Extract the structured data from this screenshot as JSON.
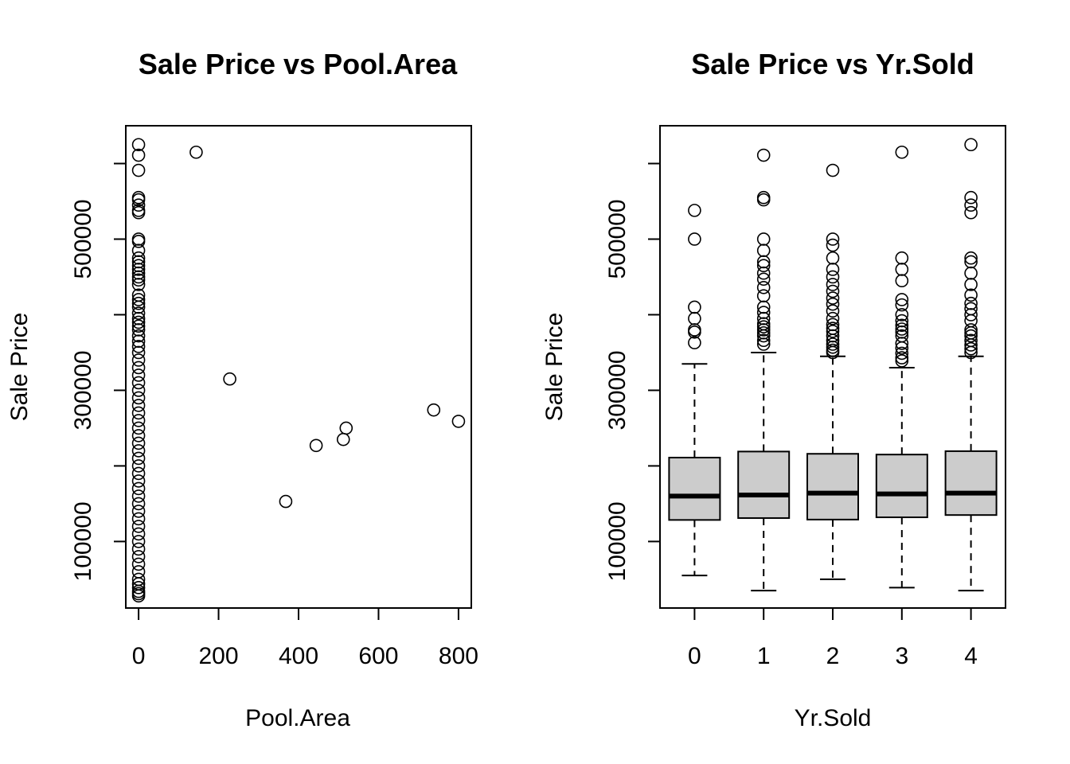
{
  "chart_data": [
    {
      "type": "scatter",
      "title": "Sale Price vs Pool.Area",
      "xlabel": "Pool.Area",
      "ylabel": "Sale Price",
      "xlim": [
        -32,
        832
      ],
      "ylim": [
        12000,
        650000
      ],
      "xticks": [
        0,
        200,
        400,
        600,
        800
      ],
      "xtick_labels": [
        "0",
        "200",
        "400",
        "600",
        "800"
      ],
      "yticks": [
        100000,
        300000,
        500000
      ],
      "ytick_labels": [
        "100000",
        "300000",
        "500000"
      ],
      "yticks_minor": [
        200000,
        400000,
        600000
      ],
      "points": [
        [
          0,
          625000
        ],
        [
          0,
          611000
        ],
        [
          0,
          591000
        ],
        [
          0,
          555000
        ],
        [
          0,
          552000
        ],
        [
          0,
          545000
        ],
        [
          0,
          538000
        ],
        [
          0,
          535000
        ],
        [
          0,
          500000
        ],
        [
          0,
          497000
        ],
        [
          0,
          485000
        ],
        [
          0,
          475000
        ],
        [
          0,
          470000
        ],
        [
          0,
          465000
        ],
        [
          0,
          460000
        ],
        [
          0,
          455000
        ],
        [
          0,
          450000
        ],
        [
          0,
          446000
        ],
        [
          0,
          440000
        ],
        [
          0,
          426000
        ],
        [
          0,
          420000
        ],
        [
          0,
          415000
        ],
        [
          0,
          410000
        ],
        [
          0,
          402000
        ],
        [
          0,
          395000
        ],
        [
          0,
          390000
        ],
        [
          0,
          385000
        ],
        [
          0,
          380000
        ],
        [
          0,
          372000
        ],
        [
          0,
          365000
        ],
        [
          0,
          358000
        ],
        [
          0,
          350000
        ],
        [
          0,
          340000
        ],
        [
          0,
          330000
        ],
        [
          0,
          320000
        ],
        [
          0,
          310000
        ],
        [
          0,
          300000
        ],
        [
          0,
          290000
        ],
        [
          0,
          280000
        ],
        [
          0,
          270000
        ],
        [
          0,
          260000
        ],
        [
          0,
          250000
        ],
        [
          0,
          240000
        ],
        [
          0,
          230000
        ],
        [
          0,
          220000
        ],
        [
          0,
          210000
        ],
        [
          0,
          200000
        ],
        [
          0,
          190000
        ],
        [
          0,
          180000
        ],
        [
          0,
          170000
        ],
        [
          0,
          160000
        ],
        [
          0,
          150000
        ],
        [
          0,
          140000
        ],
        [
          0,
          130000
        ],
        [
          0,
          120000
        ],
        [
          0,
          110000
        ],
        [
          0,
          100000
        ],
        [
          0,
          90000
        ],
        [
          0,
          80000
        ],
        [
          0,
          70000
        ],
        [
          0,
          60000
        ],
        [
          0,
          50000
        ],
        [
          0,
          44000
        ],
        [
          0,
          39000
        ],
        [
          0,
          34000
        ],
        [
          0,
          31000
        ],
        [
          0,
          28000
        ],
        [
          144,
          615000
        ],
        [
          228,
          315000
        ],
        [
          368,
          153000
        ],
        [
          444,
          227000
        ],
        [
          512,
          235000
        ],
        [
          519,
          250000
        ],
        [
          738,
          274000
        ],
        [
          800,
          259000
        ]
      ]
    },
    {
      "type": "boxplot",
      "title": "Sale Price vs Yr.Sold",
      "xlabel": "Yr.Sold",
      "ylabel": "Sale Price",
      "xlim": [
        -0.5,
        4.5
      ],
      "ylim": [
        12000,
        650000
      ],
      "categories": [
        "0",
        "1",
        "2",
        "3",
        "4"
      ],
      "yticks": [
        100000,
        300000,
        500000
      ],
      "ytick_labels": [
        "100000",
        "300000",
        "500000"
      ],
      "yticks_minor": [
        200000,
        400000,
        600000
      ],
      "boxes": [
        {
          "category": "0",
          "lower_whisker": 55000,
          "q1": 128500,
          "median": 160000,
          "q3": 211000,
          "upper_whisker": 335000,
          "outliers": [
            538000,
            500000,
            410000,
            395000,
            380000,
            377000,
            363000
          ]
        },
        {
          "category": "1",
          "lower_whisker": 35000,
          "q1": 131000,
          "median": 161500,
          "q3": 219000,
          "upper_whisker": 350000,
          "outliers": [
            611000,
            555000,
            552000,
            500000,
            485000,
            470000,
            465000,
            455000,
            447000,
            436000,
            425000,
            410000,
            403000,
            395000,
            388000,
            384000,
            380000,
            376000,
            372000,
            366000,
            361000
          ]
        },
        {
          "category": "2",
          "lower_whisker": 50000,
          "q1": 129000,
          "median": 164000,
          "q3": 216000,
          "upper_whisker": 345000,
          "outliers": [
            591000,
            500000,
            492000,
            475000,
            460000,
            450000,
            440000,
            431000,
            422000,
            414000,
            405000,
            395000,
            387000,
            382000,
            378000,
            372000,
            366000,
            361000,
            357000,
            353000,
            350000
          ]
        },
        {
          "category": "3",
          "lower_whisker": 39000,
          "q1": 132000,
          "median": 163000,
          "q3": 215000,
          "upper_whisker": 330000,
          "outliers": [
            615000,
            475000,
            460000,
            445000,
            420000,
            413000,
            400000,
            392000,
            386000,
            381000,
            377000,
            372000,
            362000,
            356000,
            349000,
            343000,
            339000
          ]
        },
        {
          "category": "4",
          "lower_whisker": 35000,
          "q1": 135000,
          "median": 164000,
          "q3": 219500,
          "upper_whisker": 345000,
          "outliers": [
            625000,
            555000,
            545000,
            535000,
            475000,
            470000,
            455000,
            440000,
            426000,
            415000,
            408000,
            400000,
            392000,
            380000,
            376000,
            372000,
            366000,
            360000,
            355000,
            350000
          ]
        }
      ]
    }
  ]
}
